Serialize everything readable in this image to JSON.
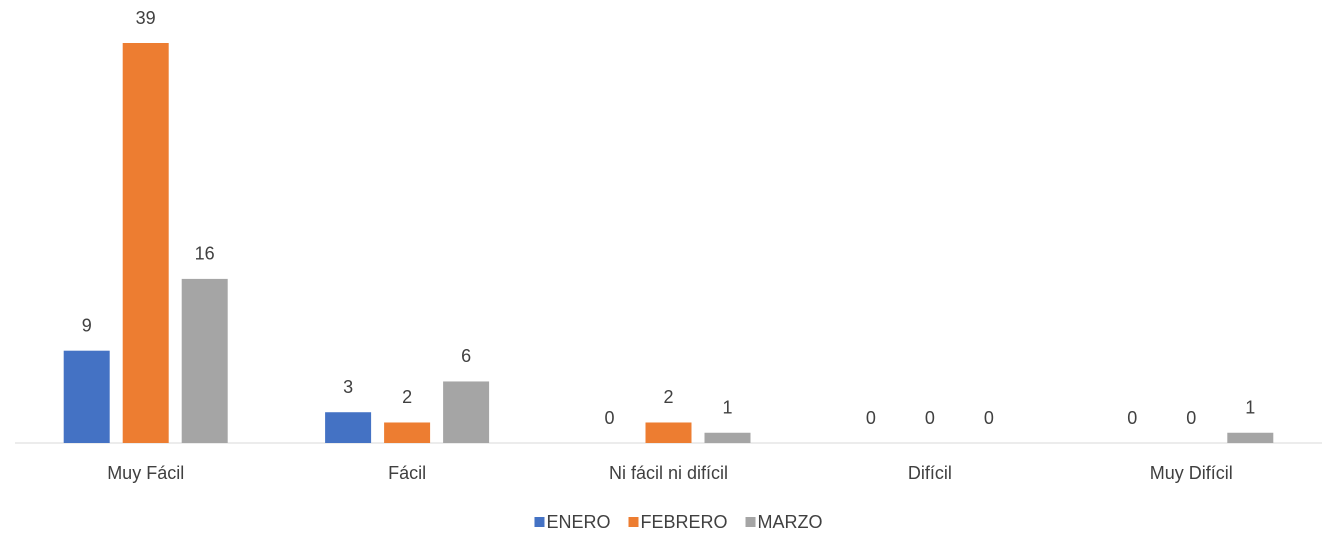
{
  "chart_data": {
    "type": "bar",
    "categories": [
      "Muy Fácil",
      "Fácil",
      "Ni fácil ni difícil",
      "Difícil",
      "Muy Difícil"
    ],
    "series": [
      {
        "name": "ENERO",
        "color": "#4472c4",
        "values": [
          9,
          3,
          0,
          0,
          0
        ]
      },
      {
        "name": "FEBRERO",
        "color": "#ed7d31",
        "values": [
          39,
          2,
          2,
          0,
          0
        ]
      },
      {
        "name": "MARZO",
        "color": "#a5a5a5",
        "values": [
          16,
          6,
          1,
          0,
          1
        ]
      }
    ],
    "legend": "bottom"
  }
}
